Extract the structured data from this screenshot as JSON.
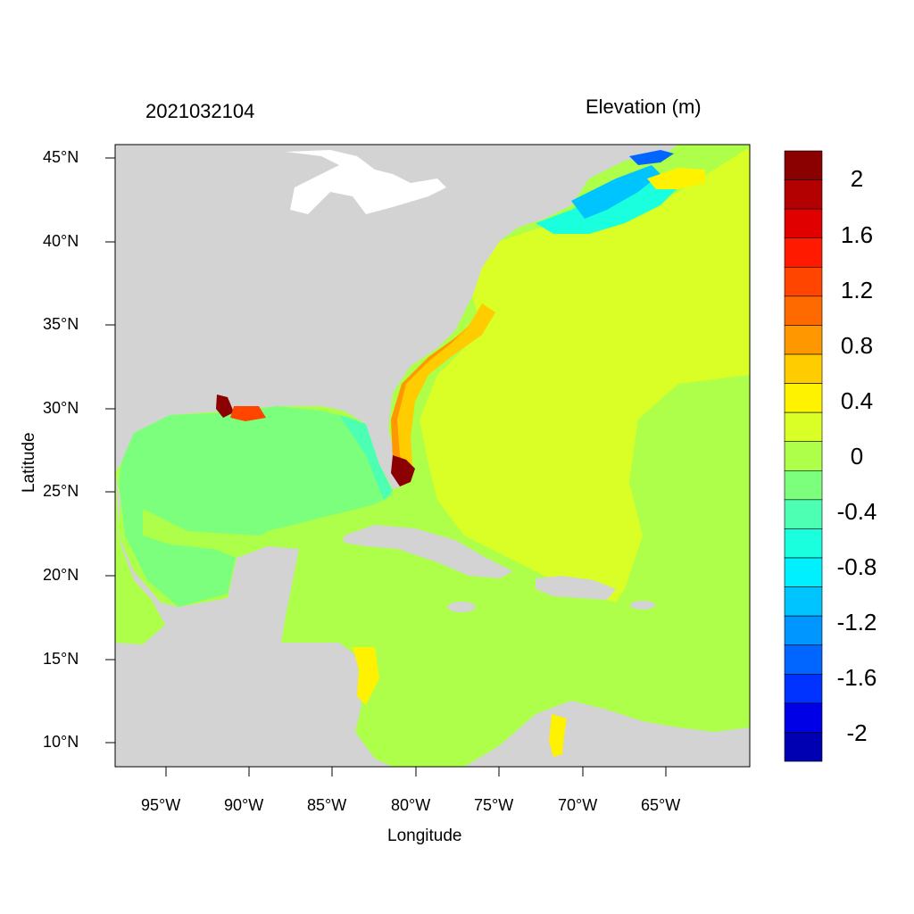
{
  "header": {
    "timestamp": "2021032104",
    "variable": "Elevation (m)"
  },
  "axes": {
    "xlabel": "Longitude",
    "ylabel": "Latitude",
    "xticks": [
      "95°W",
      "90°W",
      "85°W",
      "80°W",
      "75°W",
      "70°W",
      "65°W"
    ],
    "yticks": [
      "45°N",
      "40°N",
      "35°N",
      "30°N",
      "25°N",
      "20°N",
      "15°N",
      "10°N"
    ]
  },
  "map": {
    "extent": {
      "lon_min": -98,
      "lon_max": -60,
      "lat_min": 8.5,
      "lat_max": 46
    },
    "land_color": "#d3d3d3",
    "water_color": "#adff4a"
  },
  "colorbar": {
    "labels": [
      "2",
      "1.6",
      "1.2",
      "0.8",
      "0.4",
      "0",
      "-0.4",
      "-0.8",
      "-1.2",
      "-1.6",
      "-2"
    ],
    "colors": [
      "#8b0000",
      "#b30000",
      "#e00000",
      "#ff1a00",
      "#ff4500",
      "#ff6a00",
      "#ff9800",
      "#ffcc00",
      "#fff200",
      "#d9ff26",
      "#adff4a",
      "#7cff7c",
      "#4dffb3",
      "#1affdd",
      "#00f0ff",
      "#00c4ff",
      "#0096ff",
      "#0066ff",
      "#0033ff",
      "#0000e6",
      "#0000b3"
    ]
  }
}
